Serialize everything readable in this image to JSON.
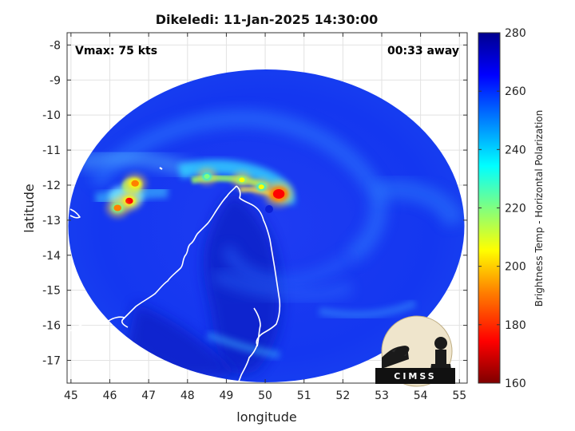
{
  "title": "Dikeledi: 11-Jan-2025 14:30:00",
  "annotations": {
    "vmax": "Vmax: 75 kts",
    "time_away": "00:33 away"
  },
  "axes": {
    "xlabel": "longitude",
    "ylabel": "latitude",
    "xlim": [
      44.9,
      55.2
    ],
    "ylim": [
      -17.65,
      -7.65
    ],
    "xticks": [
      "45",
      "46",
      "47",
      "48",
      "49",
      "50",
      "51",
      "52",
      "53",
      "54",
      "55"
    ],
    "yticks": [
      "-8",
      "-9",
      "-10",
      "-11",
      "-12",
      "-13",
      "-14",
      "-15",
      "-16",
      "-17"
    ],
    "grid": true
  },
  "colorbar": {
    "label": "Brightness Temp - Horizontal Polarization",
    "range": [
      160,
      280
    ],
    "ticks": [
      "280",
      "260",
      "240",
      "220",
      "200",
      "180",
      "160"
    ],
    "colormap": "jet",
    "colors": [
      "#7f0000",
      "#ff0000",
      "#ff8000",
      "#ffff00",
      "#80ff80",
      "#00ffff",
      "#0080ff",
      "#0000ff",
      "#00008f"
    ]
  },
  "swath": {
    "center_lon": 50.0,
    "center_lat": -12.6,
    "background_temp_k": 262,
    "land_temp_k": 255
  },
  "storm": {
    "center_lon": 50.05,
    "center_lat": -12.5,
    "max_intensity_kts": 75
  },
  "logo": {
    "text": "CIMSS",
    "icon": "cimss-logo-icon"
  },
  "chart_data": {
    "type": "heatmap",
    "title": "Dikeledi: 11-Jan-2025 14:30:00",
    "xlabel": "longitude",
    "ylabel": "latitude",
    "xlim": [
      44.9,
      55.2
    ],
    "ylim": [
      -17.65,
      -7.65
    ],
    "colorbar_label": "Brightness Temp - Horizontal Polarization",
    "clim": [
      160,
      280
    ],
    "cold_features": [
      {
        "lon": 50.35,
        "lat": -12.25,
        "temp_k": 170
      },
      {
        "lon": 46.5,
        "lat": -12.45,
        "temp_k": 180
      },
      {
        "lon": 46.65,
        "lat": -11.95,
        "temp_k": 185
      },
      {
        "lon": 46.2,
        "lat": -12.65,
        "temp_k": 195
      },
      {
        "lon": 49.4,
        "lat": -11.85,
        "temp_k": 205
      },
      {
        "lon": 48.5,
        "lat": -11.75,
        "temp_k": 215
      },
      {
        "lon": 49.9,
        "lat": -12.05,
        "temp_k": 210
      }
    ]
  }
}
